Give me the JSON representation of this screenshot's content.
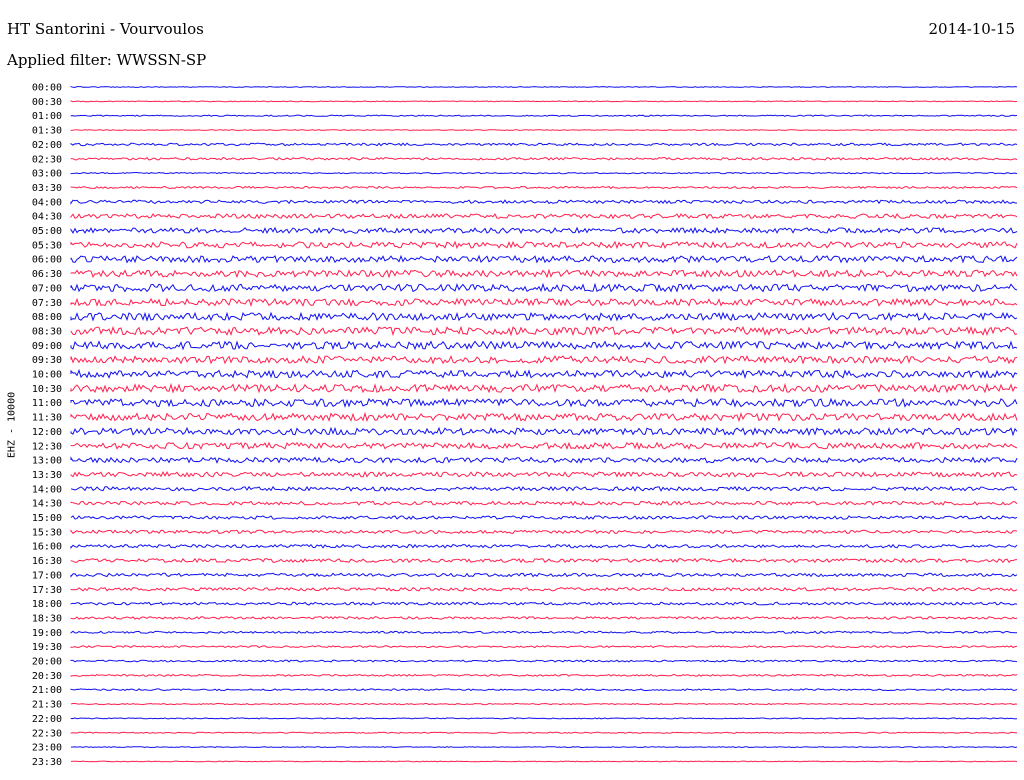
{
  "header": {
    "title": "HT Santorini - Vourvoulos",
    "filter": "Applied filter: WWSSN-SP",
    "date": "2014-10-15"
  },
  "chart_data": {
    "type": "line",
    "ylabel": "EHZ - 10000",
    "colors": [
      "#1010ee",
      "#ff1f4f"
    ],
    "grid": false,
    "categories": [
      "00:00",
      "00:30",
      "01:00",
      "01:30",
      "02:00",
      "02:30",
      "03:00",
      "03:30",
      "04:00",
      "04:30",
      "05:00",
      "05:30",
      "06:00",
      "06:30",
      "07:00",
      "07:30",
      "08:00",
      "08:30",
      "09:00",
      "09:30",
      "10:00",
      "10:30",
      "11:00",
      "11:30",
      "12:00",
      "12:30",
      "13:00",
      "13:30",
      "14:00",
      "14:30",
      "15:00",
      "15:30",
      "16:00",
      "16:30",
      "17:00",
      "17:30",
      "18:00",
      "18:30",
      "19:00",
      "19:30",
      "20:00",
      "20:30",
      "21:00",
      "21:30",
      "22:00",
      "22:30",
      "23:00",
      "23:30"
    ],
    "noise_level": [
      0.4,
      0.4,
      0.6,
      0.4,
      1.2,
      1.2,
      0.6,
      1.0,
      1.6,
      2.2,
      2.6,
      3.0,
      3.2,
      3.4,
      3.6,
      3.4,
      3.6,
      3.8,
      3.8,
      3.6,
      3.6,
      3.8,
      3.8,
      3.6,
      3.4,
      3.0,
      2.6,
      2.4,
      2.0,
      1.8,
      1.6,
      1.6,
      1.6,
      1.8,
      1.6,
      1.6,
      1.4,
      1.2,
      1.0,
      0.9,
      0.9,
      0.9,
      0.8,
      0.6,
      0.5,
      0.5,
      0.4,
      0.4
    ]
  }
}
